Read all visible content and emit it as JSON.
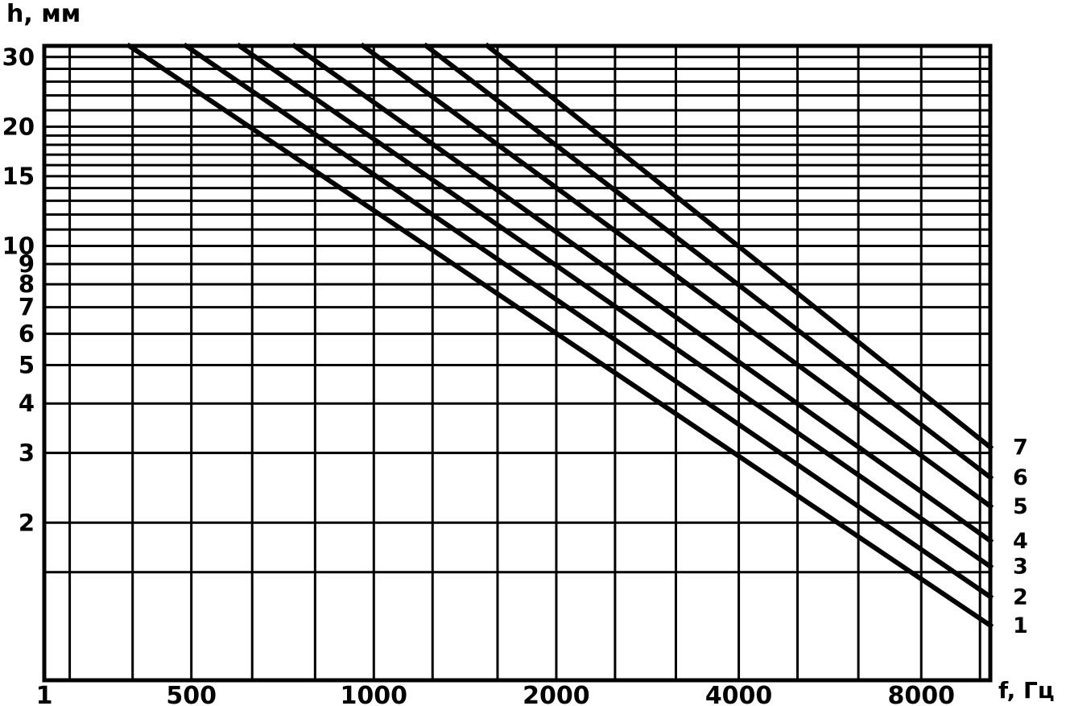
{
  "chart_data": {
    "type": "line",
    "title": "",
    "xlabel": "f, Гц",
    "ylabel": "h, мм",
    "x_scale": "log",
    "y_scale": "log",
    "xlim": [
      286,
      10400
    ],
    "ylim": [
      0.8,
      32
    ],
    "grid": true,
    "legend_position": "right-edge-curve-labels",
    "x_ticks": [
      {
        "value": 286,
        "label": "1"
      },
      {
        "value": 500,
        "label": "500"
      },
      {
        "value": 1000,
        "label": "1000"
      },
      {
        "value": 2000,
        "label": "2000"
      },
      {
        "value": 4000,
        "label": "4000"
      },
      {
        "value": 8000,
        "label": "8000"
      }
    ],
    "y_ticks": [
      {
        "value": 30,
        "label": "30"
      },
      {
        "value": 20,
        "label": "20"
      },
      {
        "value": 15,
        "label": "15"
      },
      {
        "value": 10,
        "label": "10"
      },
      {
        "value": 9,
        "label": "9"
      },
      {
        "value": 8,
        "label": "8"
      },
      {
        "value": 7,
        "label": "7"
      },
      {
        "value": 6,
        "label": "6"
      },
      {
        "value": 5,
        "label": "5"
      },
      {
        "value": 4,
        "label": "4"
      },
      {
        "value": 3,
        "label": "3"
      },
      {
        "value": 2,
        "label": "2"
      }
    ],
    "x_gridlines": [
      315,
      400,
      500,
      630,
      800,
      1000,
      1250,
      1600,
      2000,
      2500,
      3150,
      4000,
      5000,
      6300,
      8000,
      10000
    ],
    "y_gridlines": [
      1.5,
      2,
      3,
      4,
      5,
      6,
      7,
      8,
      9,
      10,
      11,
      12,
      13,
      14,
      15,
      16,
      17,
      18,
      19,
      20,
      22,
      24,
      26,
      28,
      30
    ],
    "series": [
      {
        "name": "1",
        "points": [
          [
            395,
            32
          ],
          [
            10400,
            1.1
          ]
        ]
      },
      {
        "name": "2",
        "points": [
          [
            490,
            32
          ],
          [
            10400,
            1.3
          ]
        ]
      },
      {
        "name": "3",
        "points": [
          [
            600,
            32
          ],
          [
            10400,
            1.55
          ]
        ]
      },
      {
        "name": "4",
        "points": [
          [
            740,
            32
          ],
          [
            10400,
            1.8
          ]
        ]
      },
      {
        "name": "5",
        "points": [
          [
            960,
            32
          ],
          [
            10400,
            2.2
          ]
        ]
      },
      {
        "name": "6",
        "points": [
          [
            1220,
            32
          ],
          [
            10400,
            2.6
          ]
        ]
      },
      {
        "name": "7",
        "points": [
          [
            1540,
            32
          ],
          [
            10400,
            3.1
          ]
        ]
      }
    ],
    "colors": {
      "line": "#000000",
      "grid": "#000000",
      "background": "#ffffff"
    }
  }
}
